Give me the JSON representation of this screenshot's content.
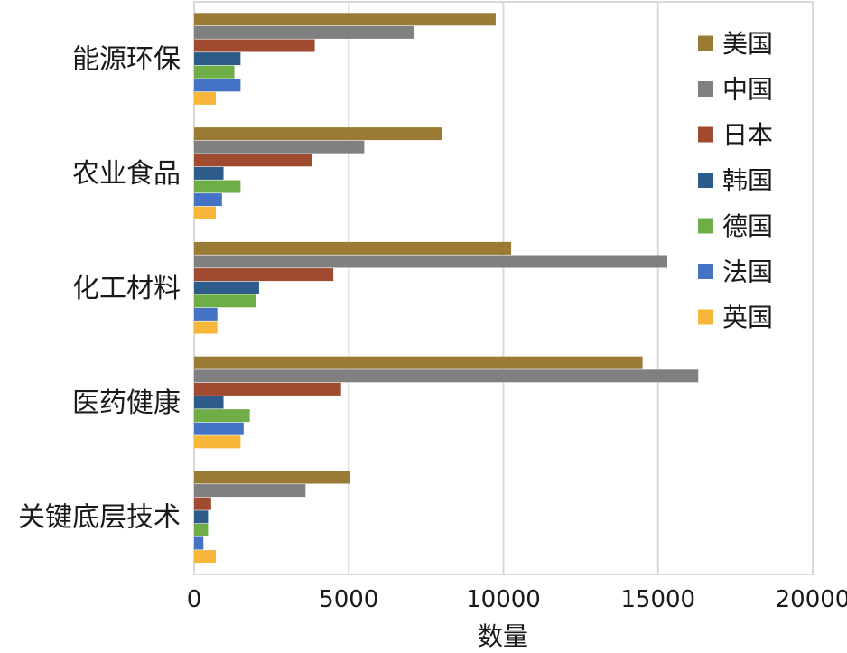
{
  "chart_data": {
    "type": "bar",
    "orientation": "horizontal",
    "categories": [
      "能源环保",
      "农业食品",
      "化工材料",
      "医药健康",
      "关键底层技术"
    ],
    "series": [
      {
        "name": "美国",
        "color": "#9a7b35",
        "values": [
          9750,
          8000,
          10250,
          14500,
          5050
        ]
      },
      {
        "name": "中国",
        "color": "#808080",
        "values": [
          7100,
          5500,
          15300,
          16300,
          3600
        ]
      },
      {
        "name": "日本",
        "color": "#a04a30",
        "values": [
          3900,
          3800,
          4500,
          4750,
          550
        ]
      },
      {
        "name": "韩国",
        "color": "#2e5c8a",
        "values": [
          1500,
          950,
          2100,
          950,
          450
        ]
      },
      {
        "name": "德国",
        "color": "#6fad47",
        "values": [
          1300,
          1500,
          2000,
          1800,
          450
        ]
      },
      {
        "name": "法国",
        "color": "#4472c4",
        "values": [
          1500,
          900,
          750,
          1600,
          300
        ]
      },
      {
        "name": "英国",
        "color": "#f5b63a",
        "values": [
          700,
          700,
          750,
          1500,
          700
        ]
      }
    ],
    "xlabel": "数量",
    "ylabel": "",
    "title": "",
    "xlim": [
      0,
      20000
    ],
    "xticks": [
      "0",
      "5000",
      "10000",
      "15000",
      "20000"
    ],
    "grid": "vertical",
    "legend": "top-right"
  }
}
